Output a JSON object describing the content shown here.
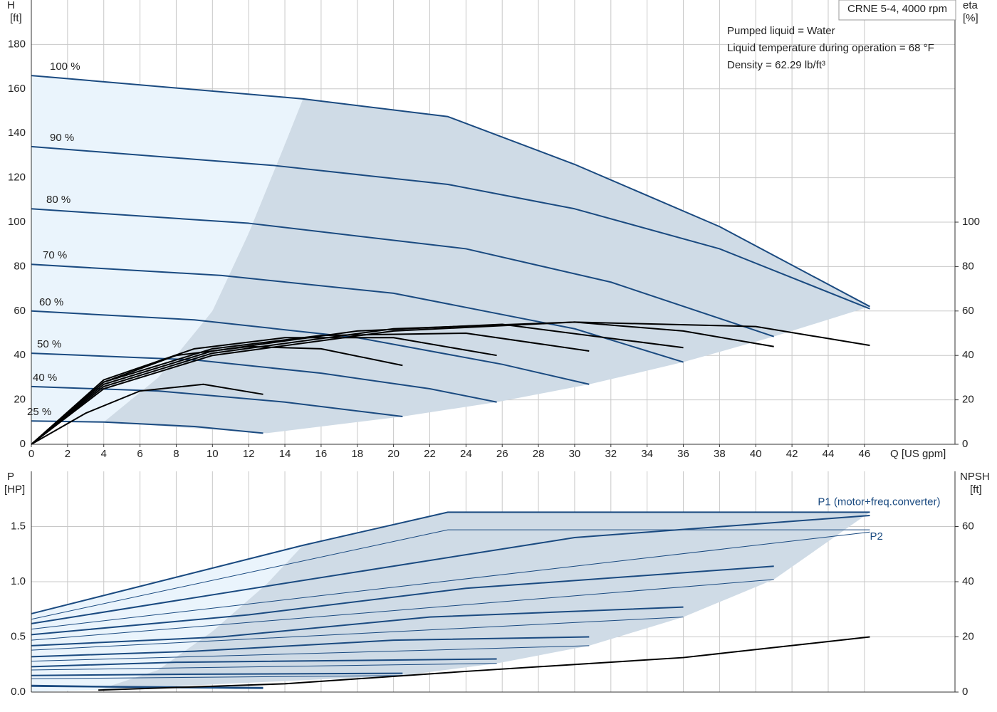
{
  "chart_data": [
    {
      "type": "line",
      "y_label": "H",
      "y_unit": "[ft]",
      "y2_label": "eta",
      "y2_unit": "[%]",
      "x_label": "Q [US gpm]",
      "title": "CRNE 5-4, 4000 rpm",
      "notes": [
        "Pumped liquid = Water",
        "Liquid temperature during operation = 68 °F",
        "Density = 62.29 lb/ft³"
      ],
      "xlim": [
        0,
        51
      ],
      "ylim": [
        0,
        200
      ],
      "y2lim": [
        0,
        200
      ],
      "xticks": [
        0,
        2,
        4,
        6,
        8,
        10,
        12,
        14,
        16,
        18,
        20,
        22,
        24,
        26,
        28,
        30,
        32,
        34,
        36,
        38,
        40,
        42,
        44,
        46
      ],
      "yticks": [
        0,
        20,
        40,
        60,
        80,
        100,
        120,
        140,
        160,
        180
      ],
      "y2ticks": [
        0,
        20,
        40,
        60,
        80,
        100
      ],
      "grid": true,
      "areas": [
        {
          "color": "#eaf4fc",
          "x": [
            0,
            15,
            14,
            12,
            10,
            7,
            4,
            0
          ],
          "values": [
            166,
            155.5,
            135,
            95,
            60,
            30,
            10,
            10.5
          ]
        },
        {
          "color": "#cfdbe6",
          "x": [
            15,
            23,
            30,
            38,
            46.3,
            41,
            36,
            30.8,
            25.7,
            20.5,
            13,
            4,
            7,
            10,
            12,
            14
          ],
          "values": [
            155.5,
            147.5,
            126,
            98,
            62,
            48.5,
            37,
            27,
            19,
            12.5,
            5,
            10,
            30,
            60,
            95,
            135
          ]
        }
      ],
      "series": [
        {
          "name": "100 %",
          "color": "#1a4a80",
          "x": [
            0,
            15,
            23,
            30,
            38,
            46.3
          ],
          "values": [
            166,
            155.5,
            147.5,
            126,
            98,
            62
          ]
        },
        {
          "name": "90 %",
          "color": "#1a4a80",
          "x": [
            0,
            13.4,
            23,
            30,
            38,
            46.3
          ],
          "values": [
            134,
            125.5,
            117,
            106,
            88,
            61
          ]
        },
        {
          "name": "80 %",
          "color": "#1a4a80",
          "x": [
            0,
            12,
            24,
            32,
            41
          ],
          "values": [
            106,
            99.5,
            88,
            73,
            48.5
          ]
        },
        {
          "name": "70 %",
          "color": "#1a4a80",
          "x": [
            0,
            10.5,
            20,
            30,
            36
          ],
          "values": [
            81,
            76,
            68,
            52,
            37
          ]
        },
        {
          "name": "60 %",
          "color": "#1a4a80",
          "x": [
            0,
            9,
            18,
            26,
            30.8
          ],
          "values": [
            60,
            56,
            48,
            36,
            27
          ]
        },
        {
          "name": "50 %",
          "color": "#1a4a80",
          "x": [
            0,
            9,
            16,
            22,
            25.7
          ],
          "values": [
            41,
            38,
            32,
            25,
            19
          ]
        },
        {
          "name": "40 %",
          "color": "#1a4a80",
          "x": [
            0,
            7,
            14,
            20.5
          ],
          "values": [
            26,
            24,
            19,
            12.5
          ]
        },
        {
          "name": "25 %",
          "color": "#1a4a80",
          "x": [
            0,
            4,
            9,
            12.8
          ],
          "values": [
            10.5,
            10,
            8,
            5
          ]
        },
        {
          "color": "#000000",
          "axis": "y2",
          "x": [
            0,
            4,
            10,
            20,
            30,
            40,
            46.3
          ],
          "values": [
            0,
            25,
            40,
            51,
            55,
            53,
            44.5
          ]
        },
        {
          "color": "#000000",
          "axis": "y2",
          "x": [
            0,
            4,
            10,
            20,
            30,
            36,
            41
          ],
          "values": [
            0,
            26,
            41,
            52,
            55,
            51,
            44
          ]
        },
        {
          "color": "#000000",
          "axis": "y2",
          "x": [
            0,
            4,
            10,
            18,
            26,
            36
          ],
          "values": [
            0,
            27,
            42,
            51,
            54,
            43.5
          ]
        },
        {
          "color": "#000000",
          "axis": "y2",
          "x": [
            0,
            4,
            10,
            16,
            24,
            30.8
          ],
          "values": [
            0,
            28,
            43,
            49,
            50,
            42
          ]
        },
        {
          "color": "#000000",
          "axis": "y2",
          "x": [
            0,
            4,
            9,
            14,
            20,
            25.7
          ],
          "values": [
            0,
            29,
            43,
            48,
            48,
            40
          ]
        },
        {
          "color": "#000000",
          "axis": "y2",
          "x": [
            0,
            4,
            8,
            12,
            16,
            20.5
          ],
          "values": [
            0,
            28,
            40,
            44,
            43,
            35.5
          ]
        },
        {
          "color": "#000000",
          "axis": "y2",
          "x": [
            0,
            3,
            6,
            9.5,
            12.8
          ],
          "values": [
            0,
            14,
            24,
            27,
            22.5
          ]
        }
      ]
    },
    {
      "type": "line",
      "y_label": "P",
      "y_unit": "[HP]",
      "y2_label": "NPSH",
      "y2_unit": "[ft]",
      "xlim": [
        0,
        51
      ],
      "ylim": [
        0,
        2
      ],
      "y2lim": [
        0,
        80
      ],
      "yticks": [
        {
          "value": 0,
          "label": "0.0"
        },
        0.5,
        {
          "value": 1,
          "label": "1.0"
        },
        1.5
      ],
      "y2ticks": [
        0,
        20,
        40,
        60
      ],
      "areas": [
        {
          "color": "#eaf4fc",
          "x": [
            0,
            15,
            13,
            10,
            7,
            3.7,
            0
          ],
          "values": [
            0.71,
            1.33,
            0.98,
            0.55,
            0.2,
            0.02,
            0
          ]
        },
        {
          "color": "#cfdbe6",
          "x": [
            15,
            23,
            46.3,
            41,
            36,
            30.8,
            25.7,
            20.5,
            3.7,
            7,
            10,
            13
          ],
          "values": [
            1.33,
            1.63,
            1.63,
            1.02,
            0.68,
            0.42,
            0.26,
            0.15,
            0.02,
            0.2,
            0.55,
            0.98
          ]
        }
      ],
      "series": [
        {
          "name": "P1 (motor+freq.converter)",
          "color": "#1a4a80",
          "x": [
            0,
            15,
            23,
            46.3
          ],
          "values": [
            0.71,
            1.33,
            1.63,
            1.63
          ]
        },
        {
          "name": "P2",
          "color": "#1a4a80",
          "x": [
            0,
            23,
            46.3
          ],
          "values": [
            0.66,
            1.47,
            1.47
          ]
        },
        {
          "color": "#1a4a80",
          "x": [
            0,
            13.4,
            30,
            46.3
          ],
          "values": [
            0.62,
            0.97,
            1.4,
            1.6
          ]
        },
        {
          "color": "#1a4a80",
          "x": [
            0,
            46.3
          ],
          "values": [
            0.57,
            1.45
          ]
        },
        {
          "color": "#1a4a80",
          "x": [
            0,
            12,
            24,
            41
          ],
          "values": [
            0.52,
            0.7,
            0.94,
            1.14
          ]
        },
        {
          "color": "#1a4a80",
          "x": [
            0,
            41
          ],
          "values": [
            0.47,
            1.02
          ]
        },
        {
          "color": "#1a4a80",
          "x": [
            0,
            10.5,
            22,
            36
          ],
          "values": [
            0.42,
            0.5,
            0.68,
            0.77
          ]
        },
        {
          "color": "#1a4a80",
          "x": [
            0,
            36
          ],
          "values": [
            0.38,
            0.68
          ]
        },
        {
          "color": "#1a4a80",
          "x": [
            0,
            9,
            20,
            30.8
          ],
          "values": [
            0.32,
            0.37,
            0.47,
            0.5
          ]
        },
        {
          "color": "#1a4a80",
          "x": [
            0,
            30.8
          ],
          "values": [
            0.28,
            0.42
          ]
        },
        {
          "color": "#1a4a80",
          "x": [
            0,
            8,
            25.7
          ],
          "values": [
            0.23,
            0.27,
            0.3
          ]
        },
        {
          "color": "#1a4a80",
          "x": [
            0,
            25.7
          ],
          "values": [
            0.2,
            0.26
          ]
        },
        {
          "color": "#1a4a80",
          "x": [
            0,
            7,
            20.5
          ],
          "values": [
            0.15,
            0.16,
            0.17
          ]
        },
        {
          "color": "#1a4a80",
          "x": [
            0,
            20.5
          ],
          "values": [
            0.12,
            0.15
          ]
        },
        {
          "color": "#1a4a80",
          "x": [
            0,
            4,
            12.8
          ],
          "values": [
            0.06,
            0.05,
            0.04
          ]
        },
        {
          "color": "#1a4a80",
          "x": [
            0,
            12.8
          ],
          "values": [
            0.05,
            0.03
          ]
        },
        {
          "color": "#000000",
          "axis": "y2",
          "x": [
            3.7,
            14,
            24,
            36,
            46.3
          ],
          "values": [
            0.7,
            3,
            7.5,
            12.5,
            20
          ]
        }
      ]
    }
  ]
}
